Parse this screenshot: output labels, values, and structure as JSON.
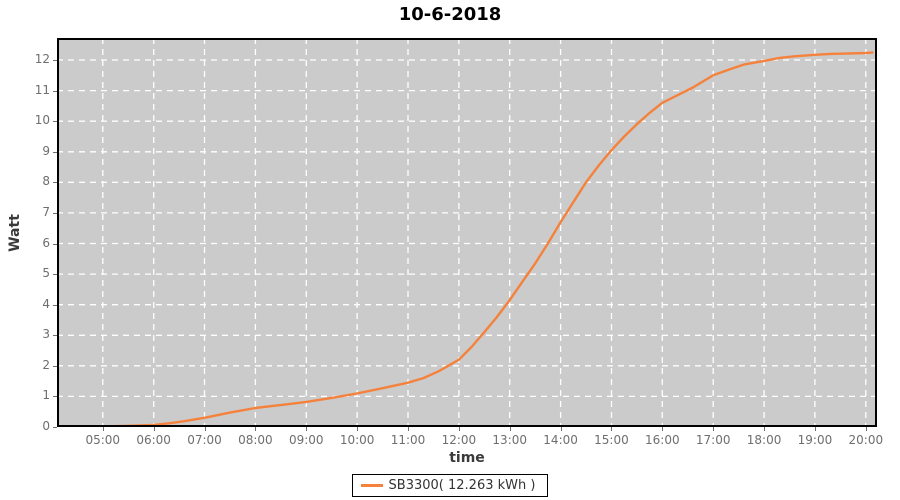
{
  "colors": {
    "plot_background": "#cbcbcb",
    "grid": "#ffffff",
    "series_orange": "#f5823c",
    "border": "#000000",
    "tick_text": "#6e6e6e"
  },
  "chart_data": {
    "type": "line",
    "title": "10-6-2018",
    "xlabel": "time",
    "ylabel": "Watt",
    "grid": true,
    "x_range": [
      4.1,
      20.22
    ],
    "y_range": [
      0,
      12.72
    ],
    "x_ticks": [
      {
        "value": 5,
        "label": "05:00"
      },
      {
        "value": 6,
        "label": "06:00"
      },
      {
        "value": 7,
        "label": "07:00"
      },
      {
        "value": 8,
        "label": "08:00"
      },
      {
        "value": 9,
        "label": "09:00"
      },
      {
        "value": 10,
        "label": "10:00"
      },
      {
        "value": 11,
        "label": "11:00"
      },
      {
        "value": 12,
        "label": "12:00"
      },
      {
        "value": 13,
        "label": "13:00"
      },
      {
        "value": 14,
        "label": "14:00"
      },
      {
        "value": 15,
        "label": "15:00"
      },
      {
        "value": 16,
        "label": "16:00"
      },
      {
        "value": 17,
        "label": "17:00"
      },
      {
        "value": 18,
        "label": "18:00"
      },
      {
        "value": 19,
        "label": "19:00"
      },
      {
        "value": 20,
        "label": "20:00"
      }
    ],
    "y_ticks": [
      {
        "value": 0,
        "label": "0"
      },
      {
        "value": 1,
        "label": "1"
      },
      {
        "value": 2,
        "label": "2"
      },
      {
        "value": 3,
        "label": "3"
      },
      {
        "value": 4,
        "label": "4"
      },
      {
        "value": 5,
        "label": "5"
      },
      {
        "value": 6,
        "label": "6"
      },
      {
        "value": 7,
        "label": "7"
      },
      {
        "value": 8,
        "label": "8"
      },
      {
        "value": 9,
        "label": "9"
      },
      {
        "value": 10,
        "label": "10"
      },
      {
        "value": 11,
        "label": "11"
      },
      {
        "value": 12,
        "label": "12"
      }
    ],
    "legend": {
      "position": "bottom",
      "entries": [
        {
          "label": "SB3300( 12.263 kWh )",
          "color": "#f5823c"
        }
      ]
    },
    "series": [
      {
        "name": "SB3300",
        "total_kwh": "12.263",
        "color": "#f5823c",
        "points": [
          [
            4.2,
            0.0
          ],
          [
            4.5,
            0.01
          ],
          [
            5.0,
            0.02
          ],
          [
            5.5,
            0.04
          ],
          [
            6.0,
            0.07
          ],
          [
            6.3,
            0.12
          ],
          [
            6.6,
            0.19
          ],
          [
            7.0,
            0.3
          ],
          [
            7.5,
            0.47
          ],
          [
            8.0,
            0.62
          ],
          [
            8.3,
            0.68
          ],
          [
            8.6,
            0.74
          ],
          [
            9.0,
            0.82
          ],
          [
            9.5,
            0.95
          ],
          [
            10.0,
            1.1
          ],
          [
            10.5,
            1.27
          ],
          [
            11.0,
            1.45
          ],
          [
            11.3,
            1.6
          ],
          [
            11.6,
            1.82
          ],
          [
            12.0,
            2.2
          ],
          [
            12.25,
            2.62
          ],
          [
            12.5,
            3.1
          ],
          [
            12.75,
            3.6
          ],
          [
            13.0,
            4.15
          ],
          [
            13.25,
            4.75
          ],
          [
            13.5,
            5.35
          ],
          [
            13.75,
            6.0
          ],
          [
            14.0,
            6.7
          ],
          [
            14.25,
            7.35
          ],
          [
            14.5,
            8.0
          ],
          [
            14.75,
            8.55
          ],
          [
            15.0,
            9.05
          ],
          [
            15.25,
            9.5
          ],
          [
            15.5,
            9.9
          ],
          [
            15.75,
            10.27
          ],
          [
            16.0,
            10.6
          ],
          [
            16.3,
            10.85
          ],
          [
            16.6,
            11.1
          ],
          [
            17.0,
            11.5
          ],
          [
            17.3,
            11.68
          ],
          [
            17.6,
            11.85
          ],
          [
            18.0,
            11.97
          ],
          [
            18.3,
            12.07
          ],
          [
            18.6,
            12.12
          ],
          [
            19.0,
            12.17
          ],
          [
            19.3,
            12.2
          ],
          [
            19.6,
            12.21
          ],
          [
            20.0,
            12.23
          ],
          [
            20.15,
            12.25
          ]
        ]
      }
    ]
  }
}
